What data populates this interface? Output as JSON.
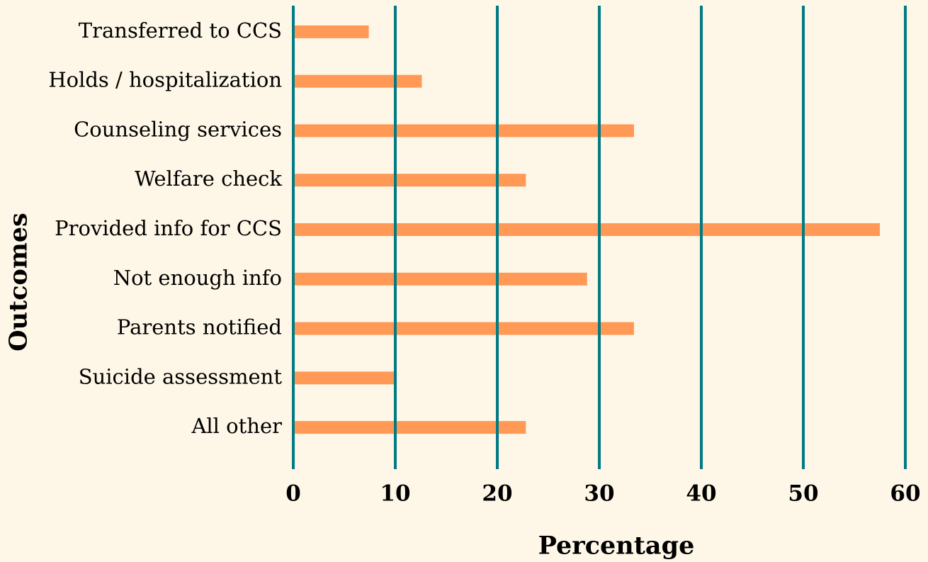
{
  "chart_data": {
    "type": "barh",
    "xlabel": "Percentage",
    "ylabel": "Outcomes",
    "categories": [
      "Transferred to CCS",
      "Holds / hospitalization",
      "Counseling services",
      "Welfare check",
      "Provided info for CCS",
      "Not enough info",
      "Parents notified",
      "Suicide assessment",
      "All other"
    ],
    "values": [
      7.4,
      12.6,
      33.4,
      22.8,
      57.5,
      28.8,
      33.4,
      10,
      22.8
    ],
    "color": "#ff9955",
    "grid_color": "#007b84",
    "xlim": [
      0,
      60
    ],
    "xticks": [
      0,
      10,
      20,
      30,
      40,
      50,
      60
    ],
    "grid": true
  }
}
